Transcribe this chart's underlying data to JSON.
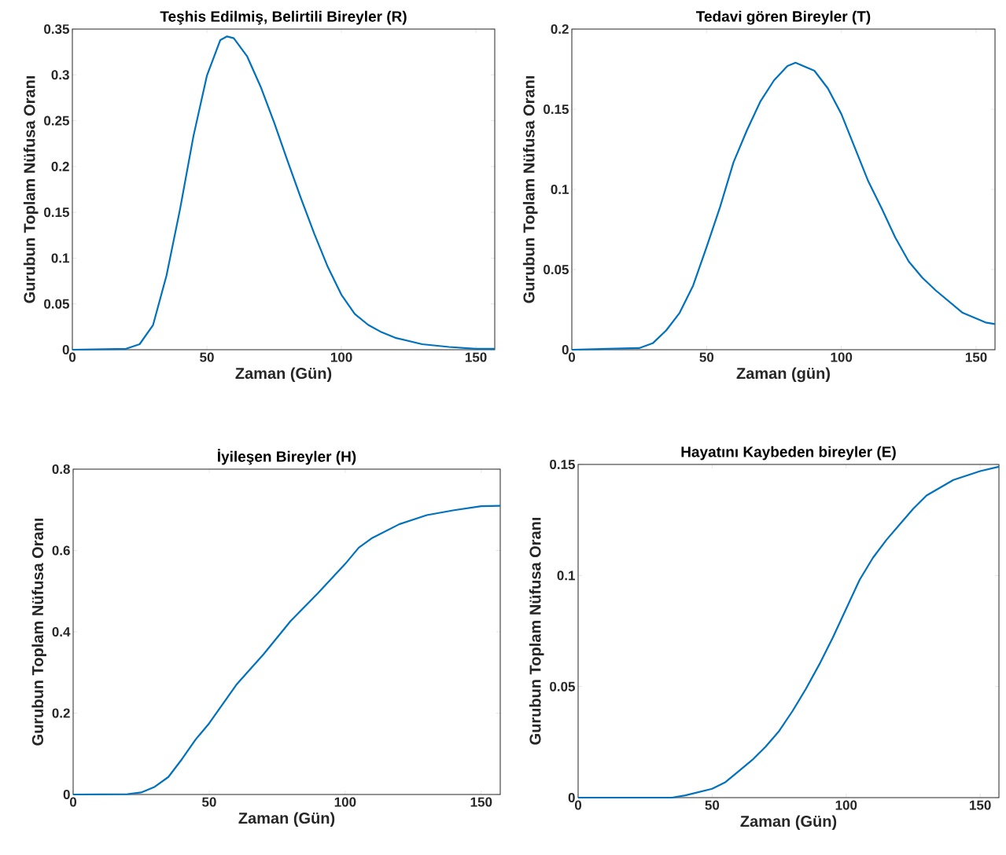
{
  "chart_data": [
    {
      "type": "line",
      "title": "Teşhis Edilmiş, Belirtili Bireyler (R)",
      "xlabel": "Zaman (Gün)",
      "ylabel": "Gurubun Toplam Nüfusa Oranı",
      "color": "#0072bd",
      "x": [
        0,
        20,
        25,
        30,
        35,
        40,
        45,
        50,
        55,
        57.5,
        60,
        65,
        70,
        75,
        80,
        85,
        90,
        95,
        100,
        105,
        110,
        115,
        120,
        130,
        140,
        150,
        157
      ],
      "values": [
        0,
        0.001,
        0.006,
        0.027,
        0.081,
        0.153,
        0.233,
        0.299,
        0.338,
        0.342,
        0.34,
        0.32,
        0.287,
        0.248,
        0.206,
        0.165,
        0.126,
        0.09,
        0.06,
        0.039,
        0.027,
        0.019,
        0.013,
        0.006,
        0.003,
        0.001,
        0.001
      ],
      "xlim": [
        0,
        157
      ],
      "ylim": [
        0,
        0.35
      ],
      "xticks": [
        0,
        50,
        100,
        150
      ],
      "yticks": [
        0,
        0.05,
        0.1,
        0.15,
        0.2,
        0.25,
        0.3,
        0.35
      ]
    },
    {
      "type": "line",
      "title": "Tedavi gören Bireyler (T)",
      "xlabel": "Zaman (gün)",
      "ylabel": "Gurubun Toplam Nüfusa Oranı",
      "color": "#0072bd",
      "x": [
        0,
        25,
        30,
        35,
        40,
        45,
        50,
        55,
        60,
        65,
        70,
        75,
        80,
        83,
        90,
        95,
        100,
        105,
        110,
        115,
        120,
        125,
        130,
        135,
        140,
        145,
        153.5,
        157
      ],
      "values": [
        0,
        0.001,
        0.004,
        0.012,
        0.023,
        0.04,
        0.064,
        0.089,
        0.117,
        0.137,
        0.155,
        0.168,
        0.177,
        0.179,
        0.174,
        0.163,
        0.147,
        0.126,
        0.105,
        0.088,
        0.07,
        0.055,
        0.045,
        0.037,
        0.03,
        0.023,
        0.017,
        0.016
      ],
      "xlim": [
        0,
        157
      ],
      "ylim": [
        0,
        0.2
      ],
      "xticks": [
        0,
        50,
        100,
        150
      ],
      "yticks": [
        0,
        0.05,
        0.1,
        0.15,
        0.2
      ]
    },
    {
      "type": "line",
      "title": "İyileşen Bireyler (H)",
      "xlabel": "Zaman (Gün)",
      "ylabel": "Gurubun Toplam Nüfusa Oranı",
      "color": "#0072bd",
      "x": [
        0,
        20,
        25,
        30,
        35,
        40,
        45,
        50,
        60,
        70,
        80,
        90,
        100,
        105,
        110,
        120,
        130,
        140,
        150,
        157
      ],
      "values": [
        0,
        0.001,
        0.005,
        0.019,
        0.043,
        0.087,
        0.135,
        0.175,
        0.27,
        0.345,
        0.427,
        0.495,
        0.567,
        0.607,
        0.631,
        0.665,
        0.687,
        0.699,
        0.709,
        0.71
      ],
      "xlim": [
        0,
        157
      ],
      "ylim": [
        0,
        0.8
      ],
      "xticks": [
        0,
        50,
        100,
        150
      ],
      "yticks": [
        0,
        0.2,
        0.4,
        0.6,
        0.8
      ]
    },
    {
      "type": "line",
      "title": "Hayatını Kaybeden bireyler (E)",
      "xlabel": "Zaman (Gün)",
      "ylabel": "Gurubun Toplam Nüfusa Oranı",
      "color": "#0072bd",
      "x": [
        0,
        35,
        40,
        50,
        55,
        60,
        65,
        70,
        75,
        80,
        85,
        90,
        95,
        100,
        105,
        110,
        115,
        120,
        125,
        130,
        140,
        150,
        157
      ],
      "values": [
        0,
        0,
        0.001,
        0.004,
        0.007,
        0.012,
        0.017,
        0.023,
        0.03,
        0.039,
        0.049,
        0.06,
        0.072,
        0.085,
        0.098,
        0.108,
        0.116,
        0.123,
        0.13,
        0.136,
        0.143,
        0.147,
        0.149
      ],
      "xlim": [
        0,
        157
      ],
      "ylim": [
        0,
        0.15
      ],
      "xticks": [
        0,
        50,
        100,
        150
      ],
      "yticks": [
        0,
        0.05,
        0.1,
        0.15
      ]
    }
  ]
}
